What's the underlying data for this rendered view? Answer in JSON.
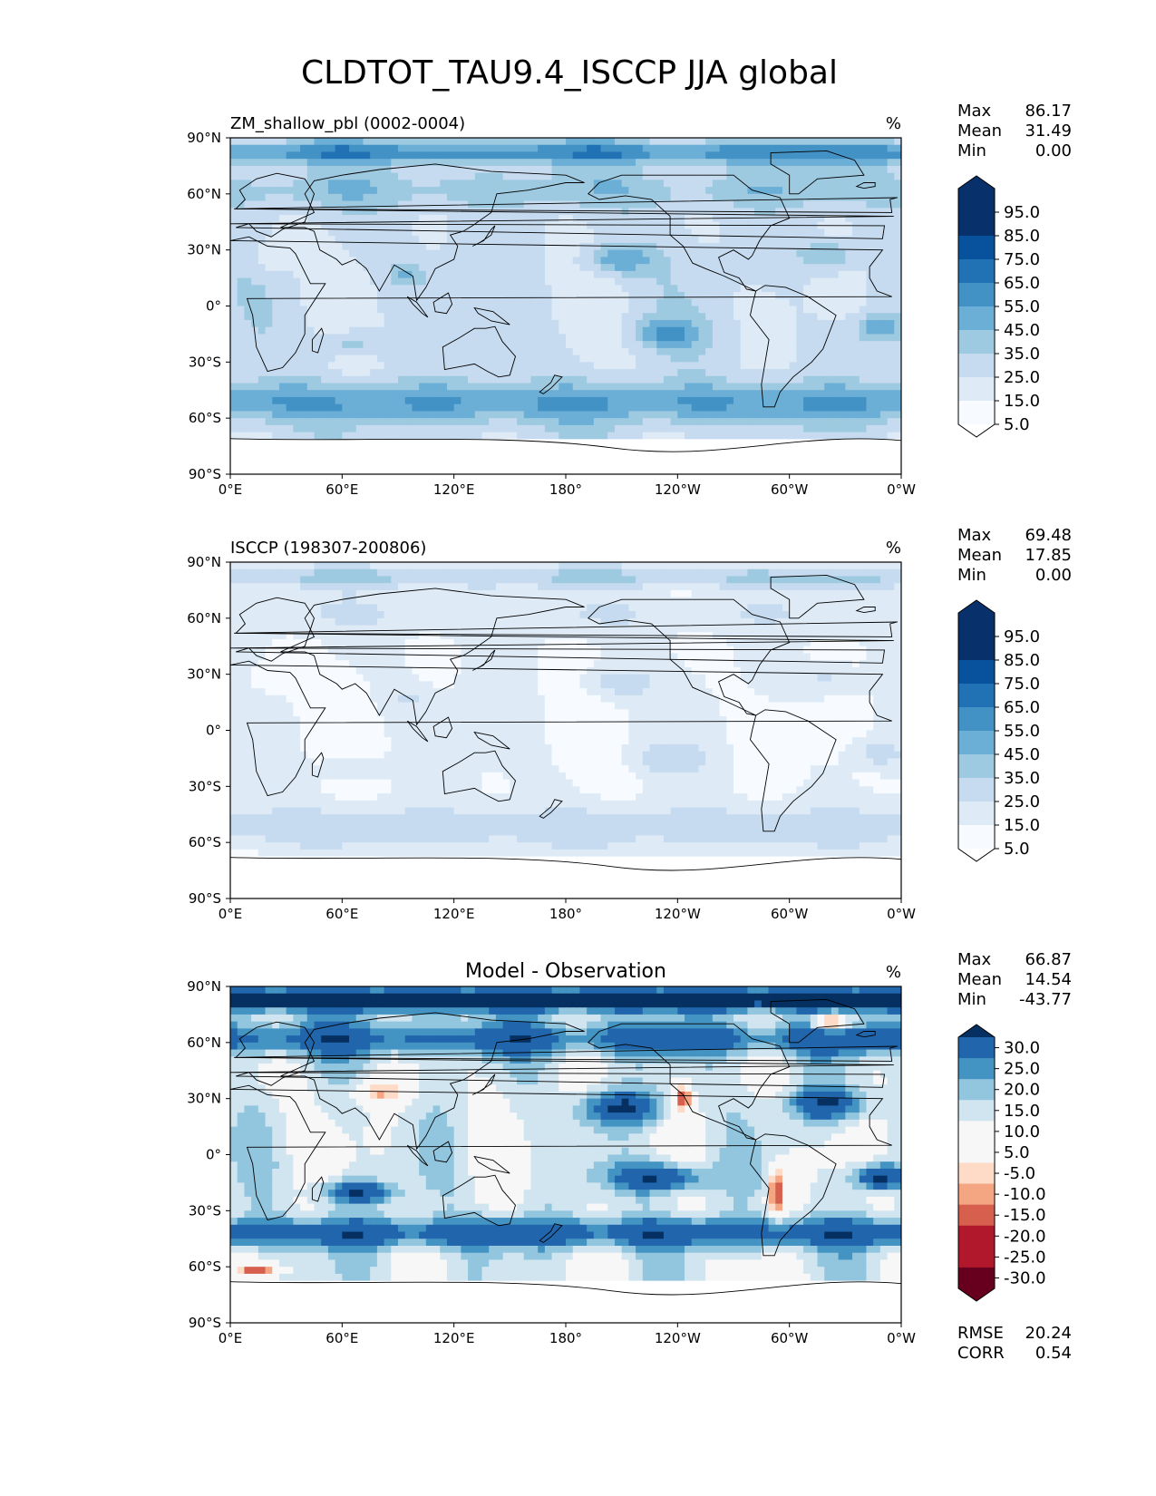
{
  "figure": {
    "title": "CLDTOT_TAU9.4_ISCCP JJA global"
  },
  "units": "%",
  "axes": {
    "lat_ticks": [
      "90°N",
      "60°N",
      "30°N",
      "0°",
      "30°S",
      "60°S",
      "90°S"
    ],
    "lon_ticks": [
      "0°E",
      "60°E",
      "120°E",
      "180°",
      "120°W",
      "60°W",
      "0°W"
    ]
  },
  "colors": {
    "seq": [
      "#f7fbff",
      "#deebf7",
      "#c6dbef",
      "#9ecae1",
      "#6baed6",
      "#4292c6",
      "#2171b5",
      "#08519c",
      "#08306b"
    ],
    "div": [
      "#67001f",
      "#b2182b",
      "#d6604d",
      "#f4a582",
      "#fddbc7",
      "#f7f7f7",
      "#d1e5f0",
      "#92c5de",
      "#4393c3",
      "#2166ac",
      "#053061"
    ],
    "land_outline": "#000000",
    "antarctica": "#ffffff"
  },
  "panels": [
    {
      "id": "model",
      "title": "ZM_shallow_pbl (0002-0004)",
      "title_style": "left",
      "units": "%",
      "stats": [
        {
          "label": "Max",
          "value": "86.17"
        },
        {
          "label": "Mean",
          "value": "31.49"
        },
        {
          "label": "Min",
          "value": "0.00"
        }
      ],
      "colorbar": {
        "type": "sequential",
        "ticks": [
          "95.0",
          "85.0",
          "75.0",
          "65.0",
          "55.0",
          "45.0",
          "35.0",
          "25.0",
          "15.0",
          "5.0"
        ]
      },
      "field_scale": 1.0,
      "field_offset": 0,
      "mask_south_of": -72
    },
    {
      "id": "obs",
      "title": "ISCCP (198307-200806)",
      "title_style": "left",
      "units": "%",
      "stats": [
        {
          "label": "Max",
          "value": "69.48"
        },
        {
          "label": "Mean",
          "value": "17.85"
        },
        {
          "label": "Min",
          "value": "0.00"
        }
      ],
      "colorbar": {
        "type": "sequential",
        "ticks": [
          "95.0",
          "85.0",
          "75.0",
          "65.0",
          "55.0",
          "45.0",
          "35.0",
          "25.0",
          "15.0",
          "5.0"
        ]
      },
      "field_scale": 0.6,
      "field_offset": -3,
      "mask_south_of": -66
    },
    {
      "id": "diff",
      "title": "Model - Observation",
      "title_style": "center",
      "units": "%",
      "stats": [
        {
          "label": "Max",
          "value": "66.87"
        },
        {
          "label": "Mean",
          "value": "14.54"
        },
        {
          "label": "Min",
          "value": "-43.77"
        }
      ],
      "colorbar": {
        "type": "diverging",
        "ticks": [
          "30.0",
          "25.0",
          "20.0",
          "15.0",
          "10.0",
          "5.0",
          "-5.0",
          "-10.0",
          "-15.0",
          "-20.0",
          "-25.0",
          "-30.0"
        ]
      },
      "metrics": [
        {
          "label": "RMSE",
          "value": "20.24"
        },
        {
          "label": "CORR",
          "value": "0.54"
        }
      ],
      "mask_south_of": -66
    }
  ]
}
